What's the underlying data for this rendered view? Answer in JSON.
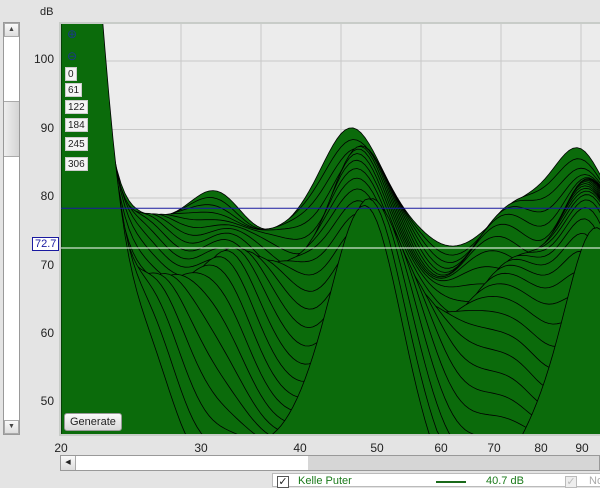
{
  "y_axis": {
    "unit": "dB",
    "ticks": [
      "100",
      "90",
      "80",
      "70",
      "60",
      "50"
    ]
  },
  "x_axis": {
    "ticks": [
      "20",
      "30",
      "40",
      "50",
      "60",
      "70",
      "80",
      "90"
    ]
  },
  "zoom_buttons": {
    "zoom_in": "zoom-in-icon",
    "zoom_out": "zoom-out-icon"
  },
  "time_slices": [
    "0",
    "61",
    "122",
    "184",
    "245",
    "306"
  ],
  "cursor_value": "72.7",
  "generate_label": "Generate",
  "legend": {
    "checked": "✓",
    "name": "Kelle Puter",
    "value": "40.7 dB",
    "second_name": "No"
  },
  "colors": {
    "fill": "#0b6b0b",
    "stroke": "#000000",
    "ref_line": "#1a1aa0",
    "cursor_line": "#ffffff",
    "legend_text": "#1a7a1a"
  },
  "chart_data": {
    "type": "area",
    "title": "",
    "xlabel": "",
    "ylabel": "dB",
    "xlim": [
      20,
      100
    ],
    "ylim": [
      45,
      105
    ],
    "x_scale": "log",
    "grid": true,
    "reference_level": 78.5,
    "cursor_level": 72.7
  }
}
